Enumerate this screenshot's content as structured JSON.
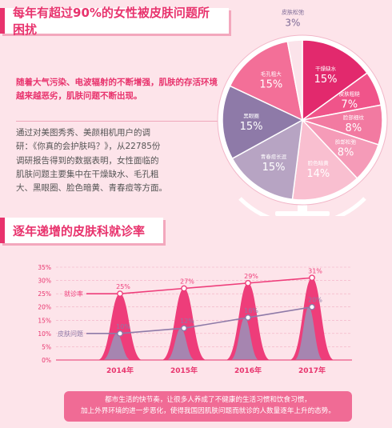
{
  "title1": "每年有超过90%的女性被皮肤问题所困扰",
  "p1": "随着大气污染、电波辐射的不断增强，肌肤的存活环境越来越恶劣，肌肤问题不断出现。",
  "p2_lines": [
    "通过对美图秀秀、美颜相机用户的调",
    "研：《你真的会护肤吗？》，从22785份",
    "调研报告得到的数据表明，女性面临的",
    "肌肤问题主要集中在干燥缺水、毛孔粗",
    "大、黑眼圈、脸色暗黄、青春痘等方面。"
  ],
  "title2": "逐年递增的皮肤科就诊率",
  "note_lines": [
    "都市生活的快节奏，让很多人养成了不健康的生活习惯和饮食习惯，",
    "加上外界环境的进一步恶化，使得我国因肌肤问题而就诊的人数量逐年上升的态势。"
  ],
  "chart_data": [
    {
      "type": "pie",
      "slices": [
        {
          "label": "干燥缺水",
          "value": 15,
          "color": "#e2296d"
        },
        {
          "label": "皮肤粗糙",
          "value": 7,
          "color": "#f0548a"
        },
        {
          "label": "脸部细纹",
          "value": 8,
          "color": "#f27aa1"
        },
        {
          "label": "脸部松弛",
          "value": 8,
          "color": "#f59bb8"
        },
        {
          "label": "脸色暗黄",
          "value": 14,
          "color": "#f9bfd0"
        },
        {
          "label": "青春痘长逗",
          "value": 15,
          "color": "#b7a4c3"
        },
        {
          "label": "黑眼圈",
          "value": 15,
          "color": "#8e7aa8"
        },
        {
          "label": "毛孔粗大",
          "value": 15,
          "color": "#f36f98"
        },
        {
          "label": "皮肤松弛",
          "value": 3,
          "color": "#fbe3ea"
        }
      ],
      "value_labels": [
        "15%",
        "7%",
        "8%",
        "8%",
        "14%",
        "15%",
        "15%",
        "15%",
        "3%"
      ]
    },
    {
      "type": "line",
      "categories": [
        "2014年",
        "2015年",
        "2016年",
        "2017年"
      ],
      "ylim": [
        0,
        35
      ],
      "y_ticks": [
        "0%",
        "5%",
        "10%",
        "15%",
        "20%",
        "25%",
        "30%",
        "35%"
      ],
      "series": [
        {
          "name": "就诊率",
          "values": [
            25,
            27,
            29,
            31
          ],
          "labels": [
            "25%",
            "27%",
            "29%",
            "31%"
          ],
          "color": "#ee3d7a"
        },
        {
          "name": "皮肤问题",
          "values": [
            10,
            12,
            16,
            20
          ],
          "labels": [
            "10%",
            "12%",
            "16%",
            "20%"
          ],
          "color": "#8e7aa8"
        }
      ]
    }
  ]
}
